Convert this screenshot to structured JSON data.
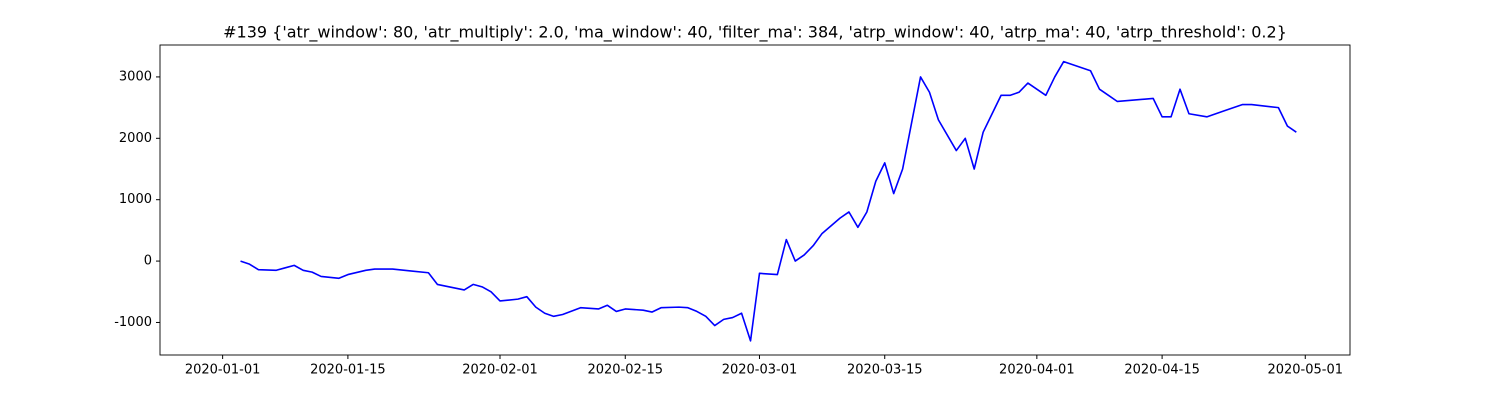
{
  "chart_data": {
    "type": "line",
    "title": "#139 {'atr_window': 80, 'atr_multiply': 2.0, 'ma_window': 40, 'filter_ma': 384, 'atrp_window': 40, 'atrp_ma': 40, 'atrp_threshold': 0.2}",
    "x": [
      "2020-01-03",
      "2020-01-04",
      "2020-01-05",
      "2020-01-07",
      "2020-01-08",
      "2020-01-09",
      "2020-01-10",
      "2020-01-11",
      "2020-01-12",
      "2020-01-14",
      "2020-01-15",
      "2020-01-17",
      "2020-01-18",
      "2020-01-20",
      "2020-01-22",
      "2020-01-24",
      "2020-01-25",
      "2020-01-28",
      "2020-01-29",
      "2020-01-30",
      "2020-01-31",
      "2020-02-01",
      "2020-02-03",
      "2020-02-04",
      "2020-02-05",
      "2020-02-06",
      "2020-02-07",
      "2020-02-08",
      "2020-02-10",
      "2020-02-12",
      "2020-02-13",
      "2020-02-14",
      "2020-02-15",
      "2020-02-17",
      "2020-02-18",
      "2020-02-19",
      "2020-02-21",
      "2020-02-22",
      "2020-02-23",
      "2020-02-24",
      "2020-02-25",
      "2020-02-26",
      "2020-02-27",
      "2020-02-28",
      "2020-02-29",
      "2020-03-01",
      "2020-03-03",
      "2020-03-04",
      "2020-03-05",
      "2020-03-06",
      "2020-03-07",
      "2020-03-08",
      "2020-03-10",
      "2020-03-11",
      "2020-03-12",
      "2020-03-13",
      "2020-03-14",
      "2020-03-15",
      "2020-03-16",
      "2020-03-17",
      "2020-03-18",
      "2020-03-19",
      "2020-03-20",
      "2020-03-21",
      "2020-03-23",
      "2020-03-24",
      "2020-03-25",
      "2020-03-26",
      "2020-03-27",
      "2020-03-28",
      "2020-03-29",
      "2020-03-30",
      "2020-03-31",
      "2020-04-02",
      "2020-04-03",
      "2020-04-04",
      "2020-04-07",
      "2020-04-08",
      "2020-04-09",
      "2020-04-10",
      "2020-04-14",
      "2020-04-15",
      "2020-04-16",
      "2020-04-17",
      "2020-04-18",
      "2020-04-20",
      "2020-04-22",
      "2020-04-24",
      "2020-04-25",
      "2020-04-28",
      "2020-04-29",
      "2020-04-30"
    ],
    "series": [
      {
        "color": "#0000ff",
        "values": [
          0,
          -50,
          -140,
          -150,
          -110,
          -70,
          -150,
          -180,
          -250,
          -280,
          -220,
          -150,
          -130,
          -130,
          -160,
          -190,
          -380,
          -470,
          -380,
          -420,
          -500,
          -650,
          -620,
          -580,
          -750,
          -850,
          -900,
          -870,
          -760,
          -780,
          -720,
          -820,
          -780,
          -800,
          -830,
          -760,
          -750,
          -760,
          -820,
          -900,
          -1050,
          -950,
          -920,
          -850,
          -1300,
          -200,
          -220,
          350,
          0,
          100,
          250,
          450,
          700,
          800,
          550,
          800,
          1300,
          1600,
          1100,
          1500,
          2250,
          3000,
          2750,
          2300,
          1800,
          2000,
          1500,
          2100,
          2400,
          2700,
          2700,
          2750,
          2900,
          2700,
          3000,
          3250,
          3100,
          2800,
          2700,
          2600,
          2650,
          2350,
          2350,
          2800,
          2400,
          2350,
          2450,
          2550,
          2550,
          2500,
          2200,
          2100
        ]
      }
    ],
    "xlim": [
      "2019-12-25",
      "2020-05-06"
    ],
    "xticks": [
      "2020-01-01",
      "2020-01-15",
      "2020-02-01",
      "2020-02-15",
      "2020-03-01",
      "2020-03-15",
      "2020-04-01",
      "2020-04-15",
      "2020-05-01"
    ],
    "ylim": [
      -1530,
      3520
    ],
    "yticks": [
      -1000,
      0,
      1000,
      2000,
      3000
    ]
  }
}
